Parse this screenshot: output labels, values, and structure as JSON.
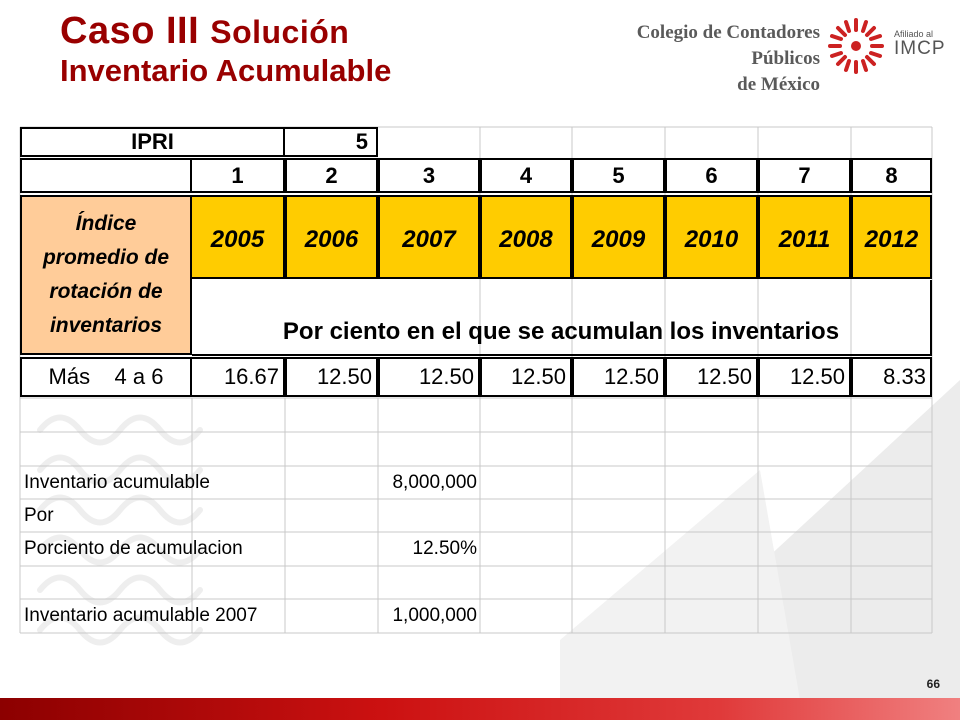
{
  "title": {
    "line1_main": "Caso III",
    "line1_small": "Solución",
    "line2": "Inventario Acumulable"
  },
  "header": {
    "org_line1": "Colegio de Contadores Públicos",
    "org_line2": "de México",
    "affiliation_small": "Afiliado al",
    "affiliation_brand": "IMCP"
  },
  "table": {
    "ipri_label": "IPRI",
    "ipri_value": "5",
    "column_numbers": [
      "1",
      "2",
      "3",
      "4",
      "5",
      "6",
      "7",
      "8"
    ],
    "index_label_lines": [
      "Índice",
      "promedio de",
      "rotación de",
      "inventarios"
    ],
    "years": [
      "2005",
      "2006",
      "2007",
      "2008",
      "2009",
      "2010",
      "2011",
      "2012"
    ],
    "percent_caption": "Por ciento en el que se acumulan los inventarios",
    "mas_label": "Más",
    "range_label": "4 a 6",
    "percentages": [
      "16.67",
      "12.50",
      "12.50",
      "12.50",
      "12.50",
      "12.50",
      "12.50",
      "8.33"
    ],
    "calc": {
      "inventario_label": "Inventario acumulable",
      "inventario_value": "8,000,000",
      "por_label": "Por",
      "porciento_label": "Porciento de acumulacion",
      "porciento_value": "12.50%",
      "result_label": "Inventario acumulable 2007",
      "result_value": "1,000,000"
    }
  },
  "page_number": "66",
  "colors": {
    "title": "#990000",
    "year_fill": "#ffcc00",
    "index_fill": "#ffcc99",
    "footer_bar": "#cc1111"
  }
}
